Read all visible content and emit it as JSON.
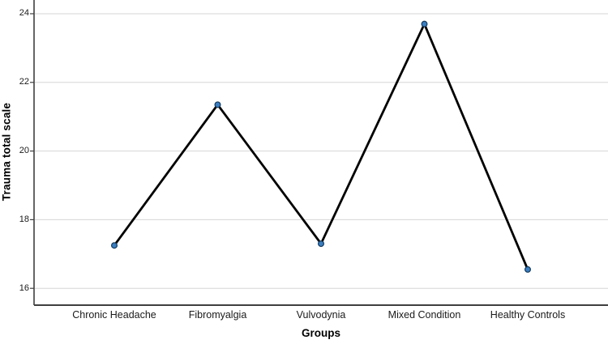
{
  "chart_data": {
    "type": "line",
    "title": "",
    "xlabel": "Groups",
    "ylabel": "Trauma total scale",
    "categories": [
      "Chronic Headache",
      "Fibromyalgia",
      "Vulvodynia",
      "Mixed Condition",
      "Healthy Controls"
    ],
    "series": [
      {
        "name": "Trauma total scale",
        "values": [
          17.25,
          21.35,
          17.3,
          23.7,
          16.55
        ]
      }
    ],
    "yticks": [
      16,
      18,
      20,
      22,
      24
    ],
    "ylim": [
      15.51,
      24.4
    ],
    "grid": "horizontal-only",
    "legend": "none",
    "colors": {
      "line": "#000000",
      "marker_fill": "#3b7ec0",
      "marker_stroke": "#123a5e",
      "gridline": "#d6d6d6",
      "axis": "#3f3f3f",
      "text": "#1a1a1a"
    }
  }
}
